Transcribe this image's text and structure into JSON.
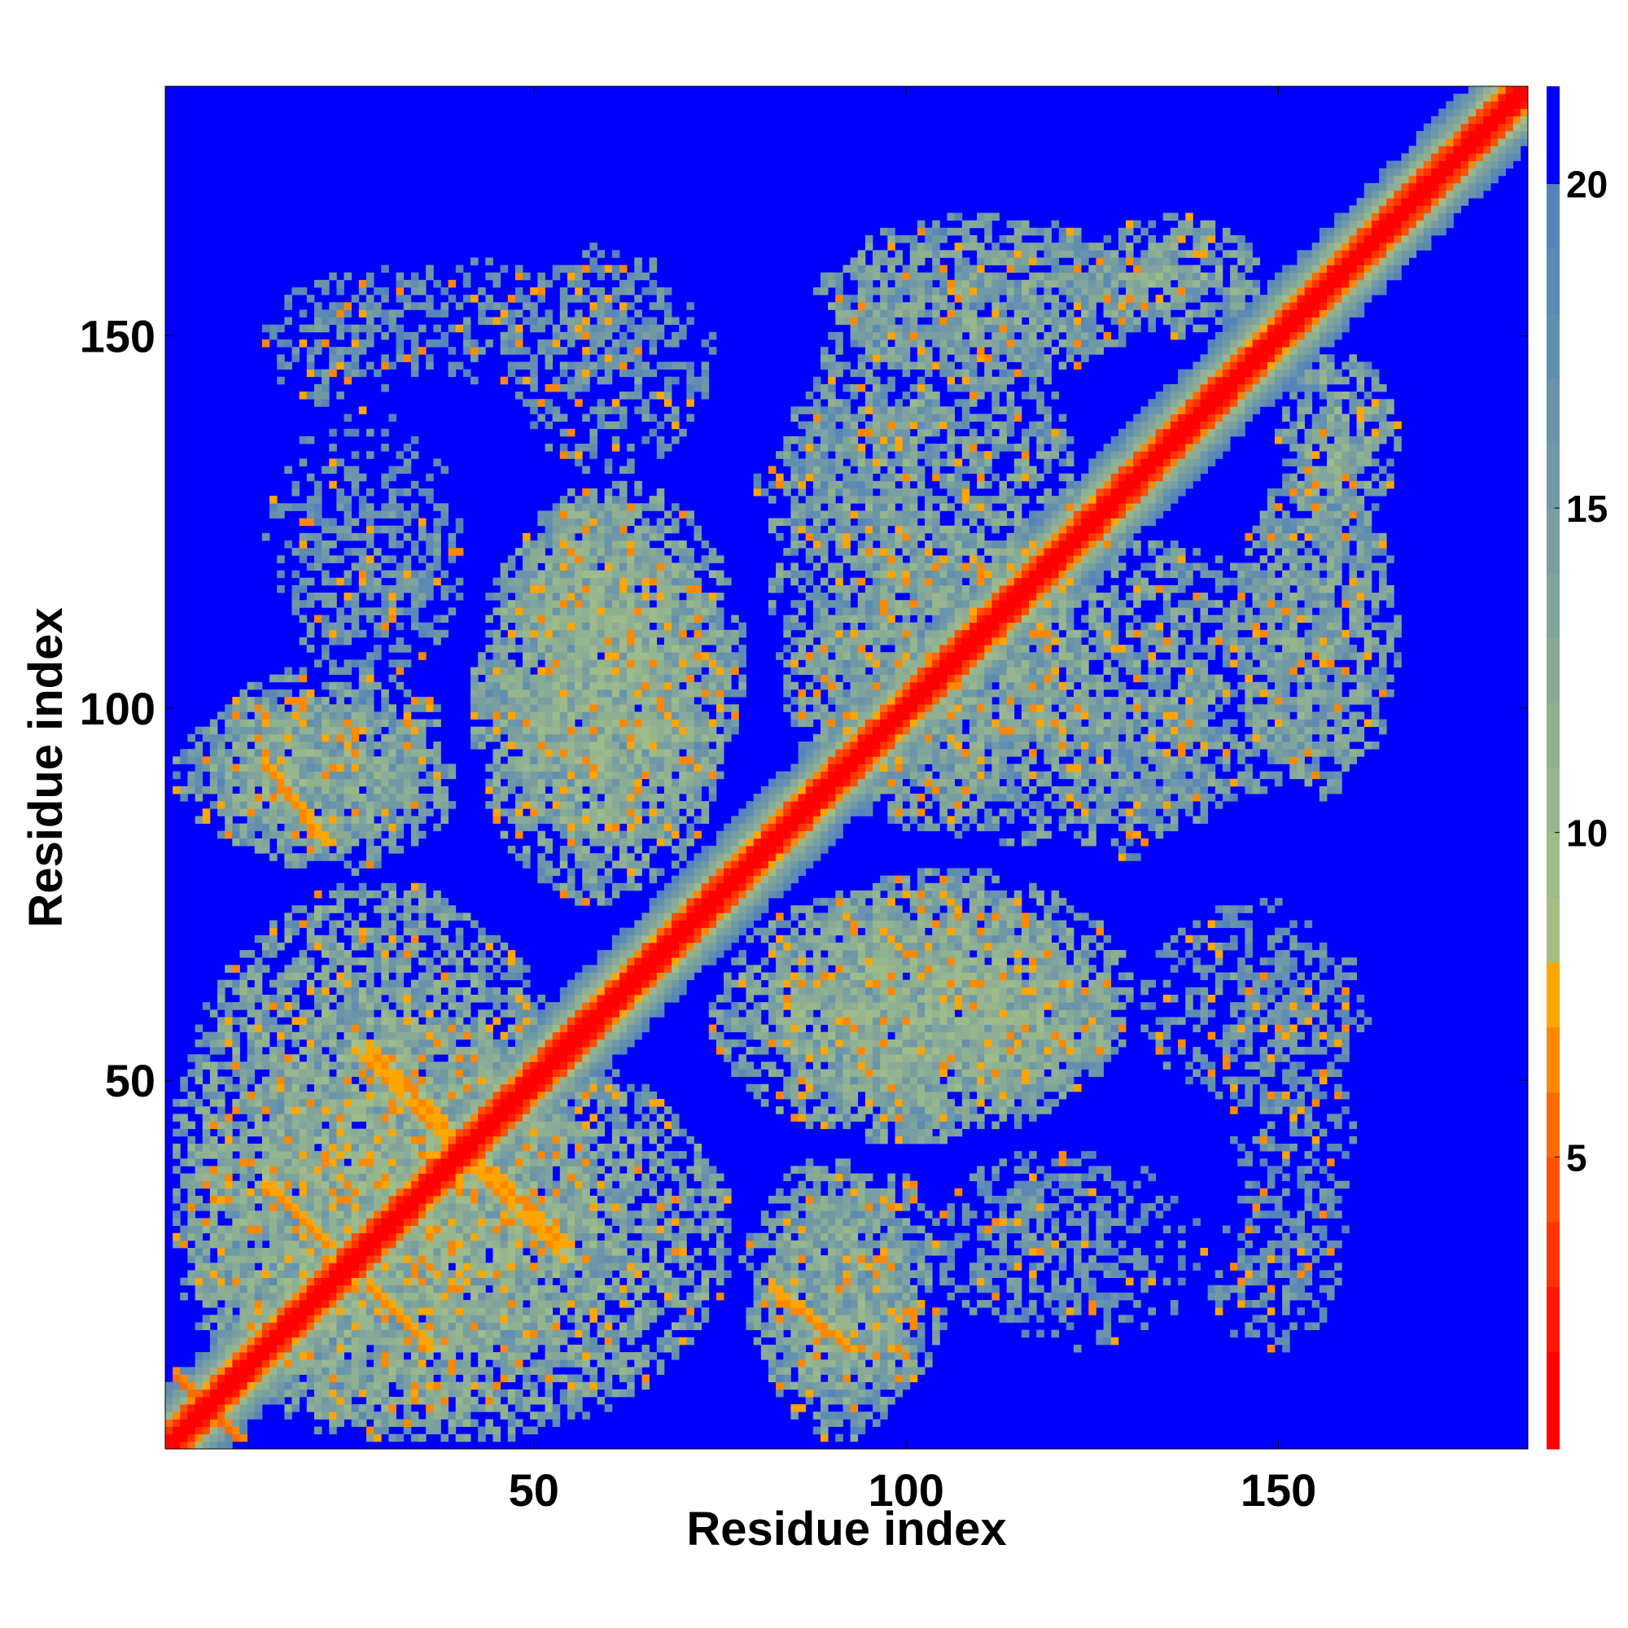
{
  "chart_data": {
    "type": "heatmap",
    "title": "",
    "xlabel": "Residue index",
    "ylabel": "Residue index",
    "n_residues": 183,
    "xlim": [
      1,
      183
    ],
    "ylim": [
      1,
      183
    ],
    "x_ticks": [
      50,
      100,
      150
    ],
    "y_ticks": [
      50,
      100,
      150
    ],
    "colorbar": {
      "ticks": [
        5,
        10,
        15,
        20
      ],
      "range": [
        0.5,
        21.5
      ],
      "colors": [
        {
          "max": 2,
          "color": "#ff0000"
        },
        {
          "max": 3,
          "color": "#ff1800"
        },
        {
          "max": 4,
          "color": "#ff3200"
        },
        {
          "max": 5,
          "color": "#ff5000"
        },
        {
          "max": 6,
          "color": "#ff6a00"
        },
        {
          "max": 7,
          "color": "#ff8800"
        },
        {
          "max": 8,
          "color": "#ffa500"
        },
        {
          "max": 9,
          "color": "#a6bf85"
        },
        {
          "max": 10,
          "color": "#9fbb89"
        },
        {
          "max": 11,
          "color": "#98b68d"
        },
        {
          "max": 12,
          "color": "#90b092"
        },
        {
          "max": 13,
          "color": "#88aa97"
        },
        {
          "max": 14,
          "color": "#80a49c"
        },
        {
          "max": 15,
          "color": "#789ea1"
        },
        {
          "max": 16,
          "color": "#7099a6"
        },
        {
          "max": 17,
          "color": "#6994ab"
        },
        {
          "max": 18,
          "color": "#628fb0"
        },
        {
          "max": 19,
          "color": "#5b8ab5"
        },
        {
          "max": 20,
          "color": "#5484ba"
        },
        {
          "max": 21.5,
          "color": "#0000ff"
        }
      ]
    },
    "diagonal_band_halfwidth": 8,
    "contact_blocks": [
      {
        "x": [
          2,
          38
        ],
        "y": [
          80,
          102
        ],
        "mean": 13.5,
        "density": 0.9
      },
      {
        "x": [
          16,
          40
        ],
        "y": [
          104,
          132
        ],
        "mean": 16.5,
        "density": 0.55
      },
      {
        "x": [
          14,
          34
        ],
        "y": [
          140,
          158
        ],
        "mean": 17.5,
        "density": 0.5
      },
      {
        "x": [
          44,
          78
        ],
        "y": [
          82,
          130
        ],
        "mean": 13,
        "density": 0.85
      },
      {
        "x": [
          46,
          74
        ],
        "y": [
          132,
          162
        ],
        "mean": 16.5,
        "density": 0.55
      },
      {
        "x": [
          82,
          124
        ],
        "y": [
          84,
          156
        ],
        "mean": 14,
        "density": 0.7
      },
      {
        "x": [
          124,
          148
        ],
        "y": [
          150,
          166
        ],
        "mean": 13.5,
        "density": 0.8
      },
      {
        "x": [
          144,
          166
        ],
        "y": [
          88,
          132
        ],
        "mean": 14,
        "density": 0.8
      },
      {
        "x": [
          120,
          140
        ],
        "y": [
          80,
          102
        ],
        "mean": 16.5,
        "density": 0.6
      },
      {
        "x": [
          74,
          128
        ],
        "y": [
          42,
          76
        ],
        "mean": 13,
        "density": 0.85
      },
      {
        "x": [
          78,
          106
        ],
        "y": [
          6,
          40
        ],
        "mean": 14,
        "density": 0.75
      },
      {
        "x": [
          106,
          140
        ],
        "y": [
          14,
          40
        ],
        "mean": 18,
        "density": 0.35
      },
      {
        "x": [
          144,
          160
        ],
        "y": [
          14,
          72
        ],
        "mean": 17.5,
        "density": 0.45
      },
      {
        "x": [
          2,
          56
        ],
        "y": [
          2,
          76
        ],
        "mean": 13,
        "density": 0.85
      }
    ],
    "contact_lines": [
      {
        "from": [
          14,
          92
        ],
        "to": [
          20,
          84
        ],
        "value": 6
      },
      {
        "from": [
          14,
          36
        ],
        "to": [
          22,
          28
        ],
        "value": 6
      },
      {
        "from": [
          28,
          22
        ],
        "to": [
          36,
          14
        ],
        "value": 6
      },
      {
        "from": [
          26,
          54
        ],
        "to": [
          40,
          40
        ],
        "value": 6
      },
      {
        "from": [
          42,
          40
        ],
        "to": [
          54,
          28
        ],
        "value": 6
      },
      {
        "from": [
          82,
          22
        ],
        "to": [
          92,
          14
        ],
        "value": 6
      },
      {
        "from": [
          2,
          10
        ],
        "to": [
          10,
          2
        ],
        "value": 5
      }
    ]
  }
}
